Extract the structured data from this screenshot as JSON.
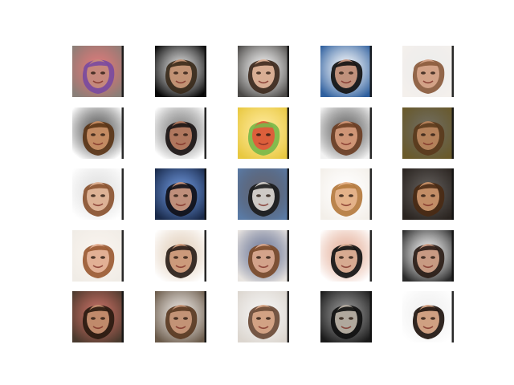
{
  "figure": {
    "description_free": true,
    "rows": 5,
    "cols": 5,
    "tiles": [
      {
        "bg": "#8a7f78",
        "skin": "#c98b7a",
        "hair": "#7a4aa0",
        "accent": "#d23c3c",
        "edge": "#111111"
      },
      {
        "bg": "#060606",
        "skin": "#c89878",
        "hair": "#3a2a1a",
        "accent": "#d6d6d6",
        "edge": "#111111"
      },
      {
        "bg": "#4c4a48",
        "skin": "#e0b49a",
        "hair": "#3e2a1e",
        "accent": "#f4f4f4",
        "edge": "#111111"
      },
      {
        "bg": "#2e5f9e",
        "skin": "#c99882",
        "hair": "#111111",
        "accent": "#ffffff",
        "edge": "#111111"
      },
      {
        "bg": "#f4f0ec",
        "skin": "#d7a58a",
        "hair": "#8a5a3c",
        "accent": "#e4e4e4",
        "edge": "#111111"
      },
      {
        "bg": "#ffffff",
        "skin": "#c88f66",
        "hair": "#5a3416",
        "accent": "#0a0a0a",
        "edge": "#111111"
      },
      {
        "bg": "#ffffff",
        "skin": "#b77c62",
        "hair": "#1a1414",
        "accent": "#444444",
        "edge": "#111111"
      },
      {
        "bg": "#e8c840",
        "skin": "#e05a3a",
        "hair": "#7ab84a",
        "accent": "#ffe070",
        "edge": "#111111"
      },
      {
        "bg": "#f2f2f2",
        "skin": "#d49a7a",
        "hair": "#6b3e24",
        "accent": "#1c1c1c",
        "edge": "#111111"
      },
      {
        "bg": "#6a5a2a",
        "skin": "#b8855e",
        "hair": "#5a3a1c",
        "accent": "#2e2a1a",
        "edge": "#111111"
      },
      {
        "bg": "#ffffff",
        "skin": "#e2b69a",
        "hair": "#8a5230",
        "accent": "#d0d0d0",
        "edge": "#111111"
      },
      {
        "bg": "#1a2a4a",
        "skin": "#c89680",
        "hair": "#101018",
        "accent": "#2a64c8",
        "edge": "#111111"
      },
      {
        "bg": "#5a7aa4",
        "skin": "#d8d4d0",
        "hair": "#1c1c1c",
        "accent": "#1a1a2a",
        "edge": "#111111"
      },
      {
        "bg": "#f3efe9",
        "skin": "#e6b48c",
        "hair": "#b47a3e",
        "accent": "#ffffff",
        "edge": "#111111"
      },
      {
        "bg": "#2a2420",
        "skin": "#c8926a",
        "hair": "#4a2a14",
        "accent": "#1a1410",
        "edge": "#111111"
      },
      {
        "bg": "#f0ece6",
        "skin": "#e6b49a",
        "hair": "#9a5a32",
        "accent": "#f7efe7",
        "edge": "#111111"
      },
      {
        "bg": "#ffffff",
        "skin": "#d4a080",
        "hair": "#2a1e18",
        "accent": "#d4b89a",
        "edge": "#111111"
      },
      {
        "bg": "#e8e4e0",
        "skin": "#d8a890",
        "hair": "#7a4a2a",
        "accent": "#2a3a6a",
        "edge": "#111111"
      },
      {
        "bg": "#ffffff",
        "skin": "#e2b298",
        "hair": "#121212",
        "accent": "#d88a6a",
        "edge": "#111111"
      },
      {
        "bg": "#2a2a2a",
        "skin": "#d0a088",
        "hair": "#2a1c16",
        "accent": "#f4f4f4",
        "edge": "#111111"
      },
      {
        "bg": "#4a3a2e",
        "skin": "#c89070",
        "hair": "#2a1a10",
        "accent": "#b03020",
        "edge": "#111111"
      },
      {
        "bg": "#6a5a4a",
        "skin": "#c8987a",
        "hair": "#5a3a22",
        "accent": "#e6e0da",
        "edge": "#111111"
      },
      {
        "bg": "#dcd6cf",
        "skin": "#d7a688",
        "hair": "#6a4a36",
        "accent": "#f0f0f0",
        "edge": "#111111"
      },
      {
        "bg": "#1a1a1a",
        "skin": "#b8b0a4",
        "hair": "#101010",
        "accent": "#6a6a6a",
        "edge": "#111111"
      },
      {
        "bg": "#ffffff",
        "skin": "#d8a688",
        "hair": "#1e140e",
        "accent": "#e8e8e8",
        "edge": "#111111"
      }
    ]
  }
}
